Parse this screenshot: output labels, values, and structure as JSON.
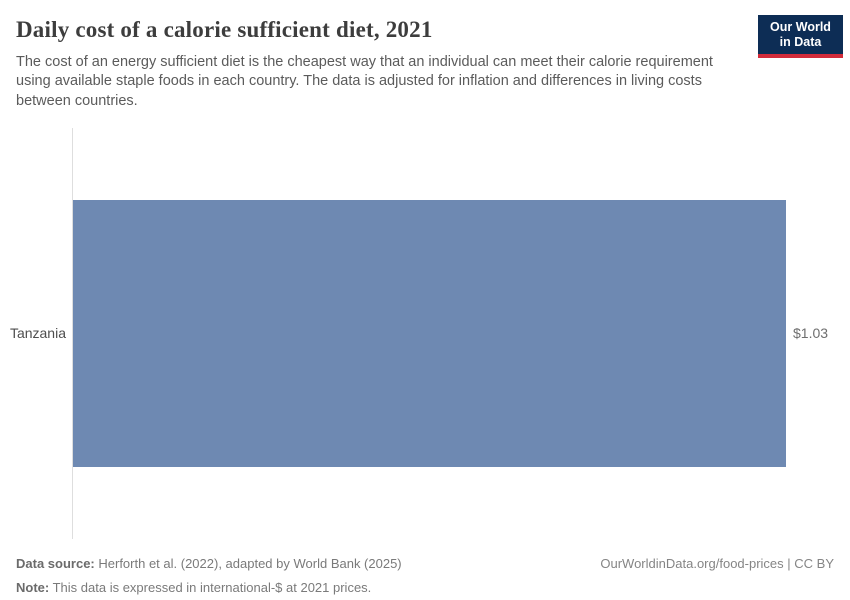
{
  "header": {
    "title": "Daily cost of a calorie sufficient diet, 2021",
    "subtitle": "The cost of an energy sufficient diet is the cheapest way that an individual can meet their calorie requirement using available staple foods in each country. The data is adjusted for inflation and differences in living costs between countries.",
    "logo": {
      "line1": "Our World",
      "line2": "in Data",
      "bg": "#0d2d55",
      "accent": "#d22b3a"
    }
  },
  "chart_data": {
    "type": "bar",
    "orientation": "horizontal",
    "title": "Daily cost of a calorie sufficient diet, 2021",
    "categories": [
      "Tanzania"
    ],
    "values": [
      1.03
    ],
    "value_labels": [
      "$1.03"
    ],
    "xlabel": "",
    "ylabel": "",
    "xlim": [
      0,
      1.03
    ],
    "grid": false,
    "legend": "none",
    "bar_color": "#6e89b2",
    "axis_color": "#dedede"
  },
  "footer": {
    "source_label": "Data source:",
    "source_text": "Herforth et al. (2022), adapted by World Bank (2025)",
    "note_label": "Note:",
    "note_text": "This data is expressed in international-$ at 2021 prices.",
    "link": "OurWorldinData.org/food-prices | CC BY"
  }
}
